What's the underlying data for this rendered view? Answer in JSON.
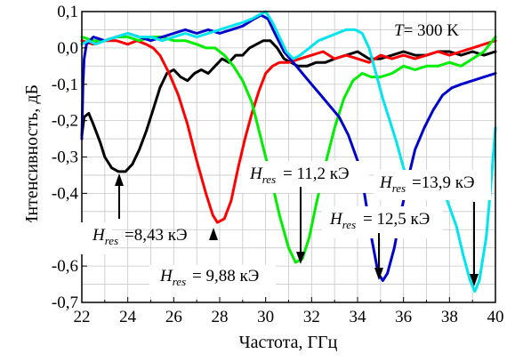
{
  "chart_data": {
    "type": "line",
    "xlabel": "Частота, ГГц",
    "ylabel": "Интенсивность, дБ",
    "xlim": [
      22,
      40
    ],
    "ylim": [
      -0.7,
      0.1
    ],
    "xticks": [
      "22",
      "24",
      "26",
      "28",
      "30",
      "32",
      "34",
      "36",
      "38",
      "40"
    ],
    "yticks": [
      "0,1",
      "0,0",
      "-0,1",
      "-0,2",
      "-0,3",
      "-0,4",
      "-0,5",
      "-0,6",
      "-0,7"
    ],
    "grid": true,
    "temperature": {
      "prefix": "T",
      "value": "= 300 K"
    },
    "series": [
      {
        "color": "#000000",
        "points": [
          [
            22.0,
            -0.24
          ],
          [
            22.1,
            -0.19
          ],
          [
            22.3,
            -0.18
          ],
          [
            22.5,
            -0.21
          ],
          [
            22.8,
            -0.26
          ],
          [
            23.0,
            -0.3
          ],
          [
            23.3,
            -0.33
          ],
          [
            23.6,
            -0.34
          ],
          [
            23.9,
            -0.34
          ],
          [
            24.2,
            -0.32
          ],
          [
            24.5,
            -0.28
          ],
          [
            24.8,
            -0.23
          ],
          [
            25.1,
            -0.17
          ],
          [
            25.4,
            -0.11
          ],
          [
            25.7,
            -0.07
          ],
          [
            26.0,
            -0.06
          ],
          [
            26.3,
            -0.08
          ],
          [
            26.6,
            -0.09
          ],
          [
            26.9,
            -0.07
          ],
          [
            27.2,
            -0.06
          ],
          [
            27.5,
            -0.07
          ],
          [
            27.8,
            -0.05
          ],
          [
            28.1,
            -0.03
          ],
          [
            28.4,
            -0.04
          ],
          [
            28.7,
            -0.02
          ],
          [
            29.0,
            -0.02
          ],
          [
            29.3,
            0.0
          ],
          [
            29.6,
            0.01
          ],
          [
            29.9,
            0.02
          ],
          [
            30.2,
            0.02
          ],
          [
            30.5,
            0.0
          ],
          [
            30.8,
            -0.03
          ],
          [
            31.1,
            -0.04
          ],
          [
            31.4,
            -0.05
          ],
          [
            31.8,
            -0.05
          ],
          [
            32.2,
            -0.04
          ],
          [
            32.6,
            -0.04
          ],
          [
            33.0,
            -0.03
          ],
          [
            33.5,
            -0.02
          ],
          [
            34.0,
            -0.01
          ],
          [
            34.5,
            -0.03
          ],
          [
            35.0,
            -0.03
          ],
          [
            35.5,
            -0.02
          ],
          [
            36.0,
            -0.01
          ],
          [
            36.5,
            -0.02
          ],
          [
            37.0,
            -0.02
          ],
          [
            37.5,
            -0.01
          ],
          [
            38.0,
            -0.01
          ],
          [
            38.5,
            -0.02
          ],
          [
            39.0,
            -0.01
          ],
          [
            39.5,
            -0.02
          ],
          [
            40.0,
            -0.01
          ]
        ]
      },
      {
        "color": "#ff0000",
        "points": [
          [
            22.0,
            0.02
          ],
          [
            22.5,
            0.01
          ],
          [
            23.0,
            0.02
          ],
          [
            23.5,
            0.02
          ],
          [
            24.0,
            0.01
          ],
          [
            24.4,
            0.02
          ],
          [
            24.8,
            0.01
          ],
          [
            25.1,
            0.0
          ],
          [
            25.4,
            -0.02
          ],
          [
            25.8,
            -0.07
          ],
          [
            26.2,
            -0.13
          ],
          [
            26.6,
            -0.21
          ],
          [
            27.0,
            -0.31
          ],
          [
            27.4,
            -0.4
          ],
          [
            27.7,
            -0.46
          ],
          [
            27.9,
            -0.48
          ],
          [
            28.2,
            -0.47
          ],
          [
            28.5,
            -0.42
          ],
          [
            28.8,
            -0.33
          ],
          [
            29.1,
            -0.25
          ],
          [
            29.4,
            -0.18
          ],
          [
            29.7,
            -0.12
          ],
          [
            30.0,
            -0.07
          ],
          [
            30.3,
            -0.05
          ],
          [
            30.6,
            -0.04
          ],
          [
            31.0,
            -0.04
          ],
          [
            31.5,
            -0.03
          ],
          [
            32.0,
            -0.02
          ],
          [
            32.5,
            -0.01
          ],
          [
            33.0,
            -0.03
          ],
          [
            33.5,
            -0.02
          ],
          [
            34.0,
            -0.03
          ],
          [
            34.5,
            -0.04
          ],
          [
            35.0,
            -0.02
          ],
          [
            35.5,
            -0.03
          ],
          [
            36.0,
            -0.02
          ],
          [
            36.5,
            -0.03
          ],
          [
            37.0,
            -0.02
          ],
          [
            37.5,
            -0.01
          ],
          [
            38.0,
            -0.02
          ],
          [
            38.5,
            -0.01
          ],
          [
            39.0,
            0.0
          ],
          [
            39.5,
            0.01
          ],
          [
            40.0,
            0.02
          ]
        ]
      },
      {
        "color": "#00ee00",
        "points": [
          [
            22.0,
            0.03
          ],
          [
            22.5,
            0.02
          ],
          [
            23.0,
            0.02
          ],
          [
            23.5,
            0.03
          ],
          [
            24.0,
            0.03
          ],
          [
            24.5,
            0.02
          ],
          [
            25.0,
            0.03
          ],
          [
            25.5,
            0.03
          ],
          [
            26.0,
            0.02
          ],
          [
            26.5,
            0.02
          ],
          [
            27.0,
            0.01
          ],
          [
            27.4,
            0.0
          ],
          [
            27.8,
            0.0
          ],
          [
            28.2,
            -0.02
          ],
          [
            28.6,
            -0.05
          ],
          [
            29.0,
            -0.09
          ],
          [
            29.4,
            -0.15
          ],
          [
            29.8,
            -0.25
          ],
          [
            30.2,
            -0.35
          ],
          [
            30.6,
            -0.46
          ],
          [
            31.0,
            -0.55
          ],
          [
            31.3,
            -0.59
          ],
          [
            31.6,
            -0.58
          ],
          [
            31.9,
            -0.52
          ],
          [
            32.2,
            -0.43
          ],
          [
            32.6,
            -0.32
          ],
          [
            33.0,
            -0.22
          ],
          [
            33.4,
            -0.14
          ],
          [
            33.8,
            -0.09
          ],
          [
            34.2,
            -0.07
          ],
          [
            34.6,
            -0.08
          ],
          [
            35.0,
            -0.08
          ],
          [
            35.5,
            -0.07
          ],
          [
            36.0,
            -0.05
          ],
          [
            36.5,
            -0.06
          ],
          [
            37.0,
            -0.05
          ],
          [
            37.5,
            -0.05
          ],
          [
            38.0,
            -0.04
          ],
          [
            38.5,
            -0.05
          ],
          [
            39.0,
            -0.03
          ],
          [
            39.5,
            -0.01
          ],
          [
            40.0,
            0.03
          ]
        ]
      },
      {
        "color": "#0000cc",
        "points": [
          [
            22.0,
            -0.25
          ],
          [
            22.05,
            -0.1
          ],
          [
            22.1,
            -0.03
          ],
          [
            22.2,
            0.01
          ],
          [
            22.5,
            0.03
          ],
          [
            23.0,
            0.02
          ],
          [
            23.5,
            0.03
          ],
          [
            24.0,
            0.04
          ],
          [
            24.5,
            0.03
          ],
          [
            25.0,
            0.02
          ],
          [
            25.5,
            0.03
          ],
          [
            26.0,
            0.04
          ],
          [
            26.5,
            0.05
          ],
          [
            27.0,
            0.04
          ],
          [
            27.5,
            0.05
          ],
          [
            28.0,
            0.04
          ],
          [
            28.5,
            0.05
          ],
          [
            29.0,
            0.06
          ],
          [
            29.5,
            0.08
          ],
          [
            29.8,
            0.09
          ],
          [
            30.1,
            0.08
          ],
          [
            30.4,
            0.04
          ],
          [
            30.8,
            -0.01
          ],
          [
            31.2,
            -0.04
          ],
          [
            31.6,
            -0.07
          ],
          [
            32.0,
            -0.1
          ],
          [
            32.4,
            -0.13
          ],
          [
            32.8,
            -0.16
          ],
          [
            33.2,
            -0.19
          ],
          [
            33.6,
            -0.24
          ],
          [
            34.0,
            -0.31
          ],
          [
            34.3,
            -0.4
          ],
          [
            34.6,
            -0.52
          ],
          [
            34.9,
            -0.62
          ],
          [
            35.1,
            -0.64
          ],
          [
            35.3,
            -0.62
          ],
          [
            35.6,
            -0.55
          ],
          [
            35.9,
            -0.45
          ],
          [
            36.2,
            -0.36
          ],
          [
            36.5,
            -0.28
          ],
          [
            36.9,
            -0.22
          ],
          [
            37.3,
            -0.17
          ],
          [
            37.7,
            -0.13
          ],
          [
            38.1,
            -0.11
          ],
          [
            38.5,
            -0.1
          ],
          [
            39.0,
            -0.09
          ],
          [
            39.5,
            -0.08
          ],
          [
            40.0,
            -0.07
          ]
        ]
      },
      {
        "color": "#00e5ee",
        "points": [
          [
            22.0,
            0.01
          ],
          [
            22.3,
            0.02
          ],
          [
            22.6,
            0.01
          ],
          [
            23.0,
            0.02
          ],
          [
            23.5,
            0.03
          ],
          [
            24.0,
            0.04
          ],
          [
            24.5,
            0.03
          ],
          [
            25.0,
            0.03
          ],
          [
            25.5,
            0.02
          ],
          [
            26.0,
            0.03
          ],
          [
            26.5,
            0.04
          ],
          [
            27.0,
            0.03
          ],
          [
            27.5,
            0.04
          ],
          [
            28.0,
            0.05
          ],
          [
            28.5,
            0.06
          ],
          [
            29.0,
            0.07
          ],
          [
            29.4,
            0.08
          ],
          [
            29.7,
            0.09
          ],
          [
            30.0,
            0.1
          ],
          [
            30.3,
            0.07
          ],
          [
            30.6,
            0.03
          ],
          [
            30.9,
            -0.01
          ],
          [
            31.2,
            -0.03
          ],
          [
            31.5,
            -0.02
          ],
          [
            31.9,
            0.0
          ],
          [
            32.3,
            0.02
          ],
          [
            32.7,
            0.03
          ],
          [
            33.1,
            0.04
          ],
          [
            33.5,
            0.05
          ],
          [
            33.9,
            0.05
          ],
          [
            34.2,
            0.04
          ],
          [
            34.5,
            0.0
          ],
          [
            34.8,
            -0.07
          ],
          [
            35.1,
            -0.14
          ],
          [
            35.4,
            -0.2
          ],
          [
            35.7,
            -0.26
          ],
          [
            36.0,
            -0.33
          ],
          [
            36.2,
            -0.36
          ],
          [
            36.6,
            -0.38
          ],
          [
            37.0,
            -0.38
          ],
          [
            37.4,
            -0.38
          ],
          [
            37.9,
            -0.42
          ],
          [
            38.3,
            -0.49
          ],
          [
            38.6,
            -0.57
          ],
          [
            38.9,
            -0.64
          ],
          [
            39.1,
            -0.67
          ],
          [
            39.3,
            -0.64
          ],
          [
            39.6,
            -0.52
          ],
          [
            39.8,
            -0.38
          ],
          [
            40.0,
            -0.22
          ]
        ]
      }
    ],
    "annotations": [
      {
        "label_main": "H",
        "label_sub": "res",
        "label_val": "=8,43 кЭ"
      },
      {
        "label_main": "H",
        "label_sub": "res",
        "label_val": "= 9,88 кЭ"
      },
      {
        "label_main": "H",
        "label_sub": "res",
        "label_val": "= 11,2 кЭ"
      },
      {
        "label_main": "H",
        "label_sub": "res",
        "label_val": "= 12,5 кЭ"
      },
      {
        "label_main": "H",
        "label_sub": "res",
        "label_val": "=13,9 кЭ"
      }
    ]
  }
}
